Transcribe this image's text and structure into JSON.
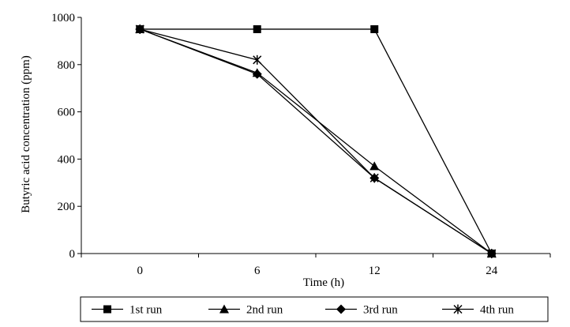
{
  "chart_data": {
    "type": "line",
    "title": "",
    "xlabel": "Time (h)",
    "ylabel": "Butyric acid concentration (ppm)",
    "categories": [
      "0",
      "6",
      "12",
      "24"
    ],
    "ylim": [
      0,
      1000
    ],
    "yticks": [
      0,
      200,
      400,
      600,
      800,
      1000
    ],
    "grid": false,
    "legend_position": "bottom",
    "series": [
      {
        "name": "1st run",
        "marker": "square",
        "values": [
          950,
          950,
          950,
          0
        ]
      },
      {
        "name": "2nd run",
        "marker": "triangle",
        "values": [
          950,
          765,
          370,
          0
        ]
      },
      {
        "name": "3rd run",
        "marker": "diamond",
        "values": [
          950,
          760,
          320,
          0
        ]
      },
      {
        "name": "4th run",
        "marker": "star",
        "values": [
          950,
          820,
          320,
          0
        ]
      }
    ],
    "colors": {
      "line": "#000000",
      "background": "#ffffff"
    }
  }
}
